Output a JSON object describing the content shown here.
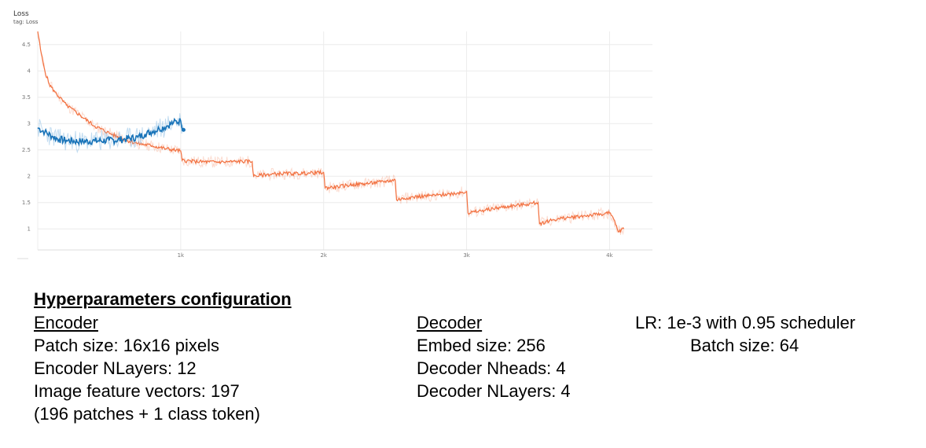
{
  "chart_data": {
    "type": "line",
    "title": "Loss",
    "subtitle": "tag: Loss",
    "xlim": [
      0,
      4300
    ],
    "ylim": [
      0.6,
      4.75
    ],
    "x_ticks": [
      1000,
      2000,
      3000,
      4000
    ],
    "x_tick_labels": [
      "1k",
      "2k",
      "3k",
      "4k"
    ],
    "y_ticks": [
      1,
      1.5,
      2,
      2.5,
      3,
      3.5,
      4,
      4.5
    ],
    "y_tick_labels": [
      "1",
      "1.5",
      "2",
      "2.5",
      "3",
      "3.5",
      "4",
      "4.5"
    ],
    "grid": true,
    "legend": "none",
    "colors": [
      "#f2703f",
      "#1873b8"
    ],
    "series": [
      {
        "color": "#f2703f",
        "x": [
          0,
          20,
          50,
          80,
          120,
          200,
          300,
          400,
          500,
          600,
          700,
          800,
          900,
          1000,
          1010,
          1100,
          1200,
          1300,
          1400,
          1500,
          1510,
          1600,
          1700,
          1800,
          1900,
          2000,
          2010,
          2100,
          2200,
          2300,
          2400,
          2500,
          2510,
          2600,
          2700,
          2800,
          2900,
          3000,
          3010,
          3100,
          3200,
          3300,
          3400,
          3500,
          3510,
          3600,
          3700,
          3800,
          3900,
          4000,
          4030,
          4060,
          4100
        ],
        "y": [
          4.75,
          4.4,
          4.0,
          3.75,
          3.6,
          3.35,
          3.15,
          2.95,
          2.82,
          2.7,
          2.62,
          2.58,
          2.52,
          2.48,
          2.3,
          2.28,
          2.27,
          2.27,
          2.28,
          2.28,
          2.0,
          2.03,
          2.05,
          2.05,
          2.06,
          2.07,
          1.78,
          1.8,
          1.84,
          1.86,
          1.89,
          1.93,
          1.55,
          1.6,
          1.62,
          1.64,
          1.67,
          1.71,
          1.3,
          1.34,
          1.39,
          1.43,
          1.46,
          1.5,
          1.1,
          1.17,
          1.21,
          1.24,
          1.27,
          1.3,
          1.18,
          0.95,
          1.0
        ]
      },
      {
        "color": "#1873b8",
        "x": [
          0,
          50,
          100,
          150,
          200,
          300,
          400,
          500,
          600,
          700,
          750,
          800,
          850,
          900,
          950,
          1000,
          1020
        ],
        "y": [
          2.92,
          2.84,
          2.76,
          2.7,
          2.68,
          2.66,
          2.67,
          2.68,
          2.7,
          2.74,
          2.8,
          2.85,
          2.9,
          2.95,
          3.02,
          3.05,
          2.88
        ]
      }
    ]
  },
  "notes": {
    "heading": "Hyperparameters configuration",
    "encoder": {
      "title": "Encoder",
      "lines": [
        "Patch size: 16x16 pixels",
        "Encoder NLayers: 12",
        "Image feature vectors: 197",
        "(196 patches + 1 class token)"
      ]
    },
    "decoder": {
      "title": "Decoder",
      "lines": [
        "Embed size: 256",
        "Decoder Nheads: 4",
        "Decoder NLayers: 4"
      ]
    },
    "training": {
      "lr": "LR: 1e-3 with 0.95 scheduler",
      "batch": "Batch size: 64"
    }
  }
}
